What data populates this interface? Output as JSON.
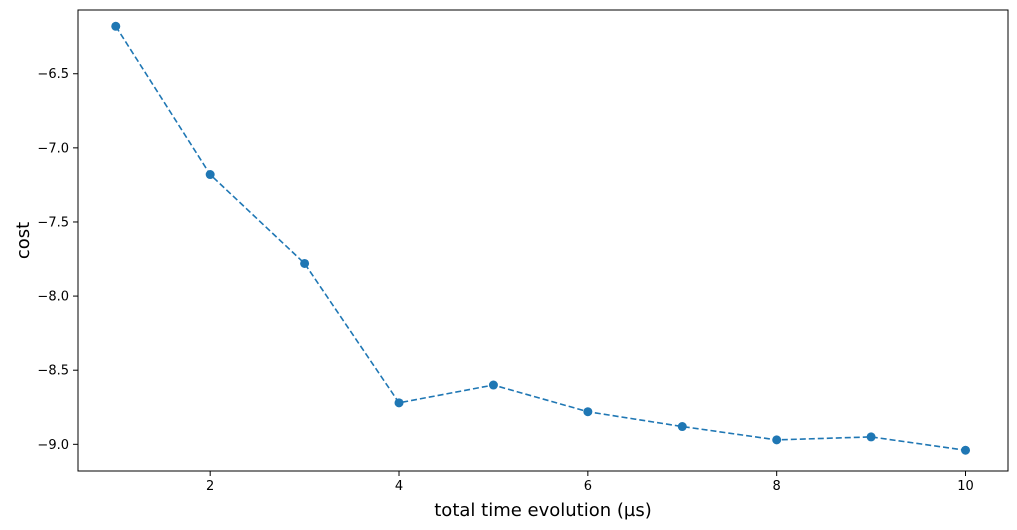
{
  "chart_data": {
    "type": "line",
    "title": "",
    "xlabel": "total time evolution (µs)",
    "ylabel": "cost",
    "xlim": [
      0.6,
      10.45
    ],
    "ylim": [
      -9.18,
      -6.07
    ],
    "x_ticks": [
      2,
      4,
      6,
      8,
      10
    ],
    "x_tick_labels": [
      "2",
      "4",
      "6",
      "8",
      "10"
    ],
    "y_ticks": [
      -6.5,
      -7.0,
      -7.5,
      -8.0,
      -8.5,
      -9.0
    ],
    "y_tick_labels": [
      "−6.5",
      "−7.0",
      "−7.5",
      "−8.0",
      "−8.5",
      "−9.0"
    ],
    "grid": false,
    "legend": false,
    "series": [
      {
        "color": "#1f77b4",
        "line_style": "dashed",
        "marker": "circle",
        "x": [
          1,
          2,
          3,
          4,
          5,
          6,
          7,
          8,
          9,
          10
        ],
        "y": [
          -6.18,
          -7.18,
          -7.78,
          -8.72,
          -8.6,
          -8.78,
          -8.88,
          -8.97,
          -8.95,
          -9.04
        ]
      }
    ]
  }
}
